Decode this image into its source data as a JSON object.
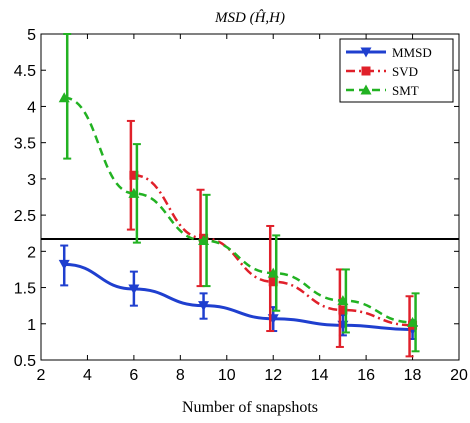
{
  "chart_data": {
    "type": "line",
    "title": "MSD (Ĥ,H)",
    "xlabel": "Number of snapshots",
    "ylabel": "",
    "xlim": [
      2,
      20
    ],
    "ylim": [
      0.5,
      5
    ],
    "xticks": [
      "2",
      "4",
      "6",
      "8",
      "10",
      "12",
      "14",
      "16",
      "18",
      "20"
    ],
    "yticks": [
      "0.5",
      "1",
      "1.5",
      "2",
      "2.5",
      "3",
      "3.5",
      "4",
      "4.5",
      "5"
    ],
    "legend_position": "top-right",
    "grid": false,
    "reference_line": {
      "y": 2.17,
      "color": "#000000"
    },
    "series": [
      {
        "name": "MMSD",
        "color": "#1f3fcf",
        "line_style": "solid",
        "marker": "triangle-down",
        "x": [
          3,
          6,
          9,
          12,
          15,
          18
        ],
        "y": [
          1.82,
          1.48,
          1.25,
          1.07,
          0.98,
          0.92
        ],
        "err_low": [
          1.53,
          1.25,
          1.07,
          0.9,
          0.84,
          0.79
        ],
        "err_high": [
          2.08,
          1.72,
          1.42,
          1.23,
          1.12,
          1.05
        ]
      },
      {
        "name": "SVD",
        "color": "#e0202a",
        "line_style": "dash-dot",
        "marker": "square",
        "x": [
          6,
          9,
          12,
          15,
          18
        ],
        "y": [
          3.05,
          2.18,
          1.58,
          1.19,
          0.98
        ],
        "err_low": [
          2.3,
          1.52,
          0.9,
          0.68,
          0.55
        ],
        "err_high": [
          3.8,
          2.85,
          2.35,
          1.75,
          1.38
        ]
      },
      {
        "name": "SMT",
        "color": "#22b222",
        "line_style": "dashed",
        "marker": "triangle-up",
        "x": [
          3,
          6,
          9,
          12,
          15,
          18
        ],
        "y": [
          4.12,
          2.8,
          2.15,
          1.7,
          1.32,
          1.02
        ],
        "err_low": [
          3.28,
          2.12,
          1.52,
          1.18,
          0.88,
          0.62
        ],
        "err_high": [
          5.0,
          3.48,
          2.78,
          2.22,
          1.75,
          1.42
        ]
      }
    ]
  }
}
